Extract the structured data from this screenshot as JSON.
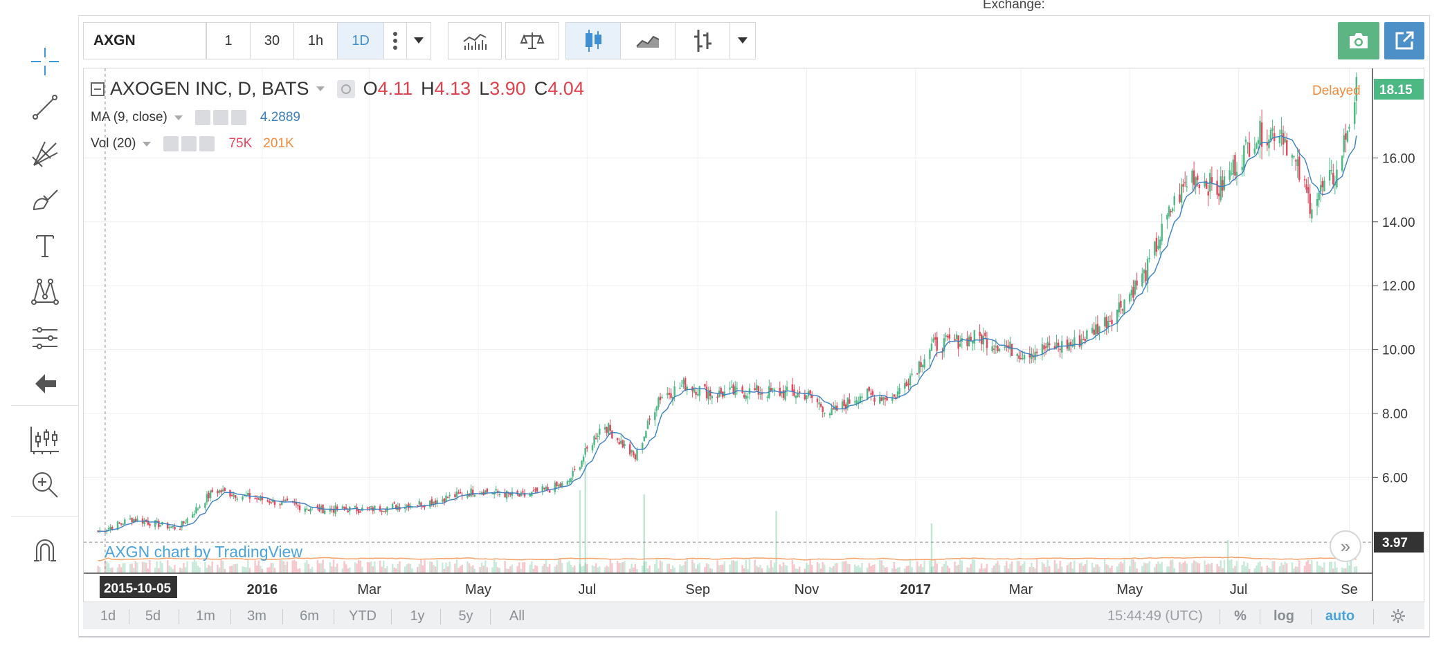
{
  "header": {
    "exchange_label": "Exchange:"
  },
  "toolbar": {
    "symbol": "AXGN",
    "intervals": [
      "1",
      "30",
      "1h",
      "1D"
    ],
    "active_interval": "1D"
  },
  "legend": {
    "title": "AXOGEN INC, D, BATS",
    "ohlc": [
      {
        "key": "O",
        "value": "4.11"
      },
      {
        "key": "H",
        "value": "4.13"
      },
      {
        "key": "L",
        "value": "3.90"
      },
      {
        "key": "C",
        "value": "4.04"
      }
    ],
    "ma_label": "MA (9, close)",
    "ma_value": "4.2889",
    "vol_label": "Vol (20)",
    "vol_value1": "75K",
    "vol_value2": "201K",
    "delayed": "Delayed",
    "watermark": "AXGN chart by TradingView"
  },
  "bottom_bar": {
    "ranges": [
      "1d",
      "5d",
      "1m",
      "3m",
      "6m",
      "YTD",
      "1y",
      "5y",
      "All"
    ],
    "clock": "15:44:49 (UTC)",
    "percent": "%",
    "log": "log",
    "auto": "auto"
  },
  "colors": {
    "up": "#4cb883",
    "down": "#e3475b",
    "ma": "#3a7fbf",
    "vol_ma": "#f5a36a",
    "last_price_bg": "#4cb883",
    "crosshair_bg": "#333333"
  },
  "chart_data": {
    "type": "candlestick",
    "symbol": "AXGN",
    "title": "AXOGEN INC, D, BATS",
    "yaxis_ticks": [
      "6.00",
      "8.00",
      "10.00",
      "12.00",
      "14.00",
      "16.00"
    ],
    "ylim": [
      3.0,
      18.8
    ],
    "last_price_label": "18.15",
    "crosshair_price_label": "3.97",
    "crosshair_date_label": "2015-10-05",
    "xaxis_labels": [
      {
        "label": "2016",
        "date": "2016-01",
        "bold": true
      },
      {
        "label": "Mar",
        "date": "2016-03",
        "bold": false
      },
      {
        "label": "May",
        "date": "2016-05",
        "bold": false
      },
      {
        "label": "Jul",
        "date": "2016-07",
        "bold": false
      },
      {
        "label": "Sep",
        "date": "2016-09",
        "bold": false
      },
      {
        "label": "Nov",
        "date": "2016-11",
        "bold": false
      },
      {
        "label": "2017",
        "date": "2017-01",
        "bold": true
      },
      {
        "label": "Mar",
        "date": "2017-03",
        "bold": false
      },
      {
        "label": "May",
        "date": "2017-05",
        "bold": false
      },
      {
        "label": "Jul",
        "date": "2017-07",
        "bold": false
      },
      {
        "label": "Se",
        "date": "2017-09",
        "bold": false
      }
    ],
    "price_path": [
      {
        "date": "2015-10-01",
        "close": 4.3
      },
      {
        "date": "2015-10-20",
        "close": 4.7
      },
      {
        "date": "2015-11-15",
        "close": 4.4
      },
      {
        "date": "2015-12-05",
        "close": 5.6
      },
      {
        "date": "2016-01-01",
        "close": 5.3
      },
      {
        "date": "2016-02-01",
        "close": 5.0
      },
      {
        "date": "2016-03-01",
        "close": 5.0
      },
      {
        "date": "2016-04-01",
        "close": 5.2
      },
      {
        "date": "2016-05-01",
        "close": 5.6
      },
      {
        "date": "2016-05-25",
        "close": 5.4
      },
      {
        "date": "2016-06-20",
        "close": 5.8
      },
      {
        "date": "2016-07-10",
        "close": 7.7
      },
      {
        "date": "2016-07-28",
        "close": 6.6
      },
      {
        "date": "2016-08-10",
        "close": 8.5
      },
      {
        "date": "2016-08-25",
        "close": 8.9
      },
      {
        "date": "2016-09-10",
        "close": 8.6
      },
      {
        "date": "2016-10-01",
        "close": 8.7
      },
      {
        "date": "2016-11-01",
        "close": 8.6
      },
      {
        "date": "2016-11-15",
        "close": 8.0
      },
      {
        "date": "2016-12-01",
        "close": 8.6
      },
      {
        "date": "2016-12-20",
        "close": 8.5
      },
      {
        "date": "2017-01-10",
        "close": 10.1
      },
      {
        "date": "2017-02-05",
        "close": 10.4
      },
      {
        "date": "2017-03-01",
        "close": 9.9
      },
      {
        "date": "2017-04-01",
        "close": 10.2
      },
      {
        "date": "2017-04-20",
        "close": 11.0
      },
      {
        "date": "2017-05-10",
        "close": 12.4
      },
      {
        "date": "2017-05-25",
        "close": 14.5
      },
      {
        "date": "2017-06-05",
        "close": 15.5
      },
      {
        "date": "2017-06-20",
        "close": 15.0
      },
      {
        "date": "2017-07-10",
        "close": 16.7
      },
      {
        "date": "2017-07-25",
        "close": 16.9
      },
      {
        "date": "2017-08-10",
        "close": 14.6
      },
      {
        "date": "2017-08-25",
        "close": 15.5
      },
      {
        "date": "2017-09-05",
        "close": 18.15
      }
    ],
    "volume_spikes": [
      {
        "date": "2016-06-27",
        "volume": 1.0
      },
      {
        "date": "2016-06-30",
        "volume": 1.35
      },
      {
        "date": "2016-08-02",
        "volume": 0.95
      },
      {
        "date": "2016-10-15",
        "volume": 0.75
      },
      {
        "date": "2017-01-10",
        "volume": 0.6
      },
      {
        "date": "2017-06-25",
        "volume": 0.4
      },
      {
        "date": "2017-09-02",
        "volume": 0.35
      }
    ]
  }
}
